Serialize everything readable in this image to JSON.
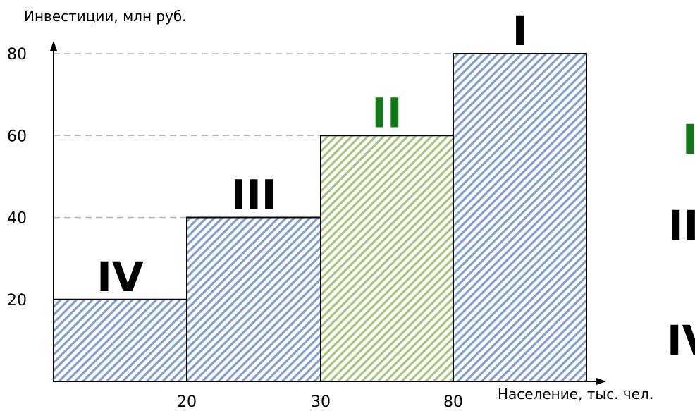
{
  "chart_data": {
    "type": "bar",
    "ylabel": "Инвестиции, млн руб.",
    "xlabel": "Население, тыс. чел.",
    "y_ticks": [
      "20",
      "40",
      "60",
      "80"
    ],
    "y_tick_values": [
      20,
      40,
      60,
      80
    ],
    "x_ticks": [
      "20",
      "30",
      "80"
    ],
    "ylim": [
      0,
      80
    ],
    "grid": "dashed horizontal lines at y ticks",
    "categories": [
      "IV",
      "III",
      "II",
      "I"
    ],
    "values": [
      20,
      40,
      60,
      80
    ],
    "bar_colors": [
      "#7f9ed0",
      "#7f9ed0",
      "#a6c47a",
      "#7f9ed0"
    ],
    "label_colors": [
      "#000000",
      "#000000",
      "#0f7a16",
      "#000000"
    ],
    "side_labels": [
      "I",
      "II",
      "IV"
    ],
    "side_label_colors": [
      "#0f7a16",
      "#000000",
      "#000000"
    ]
  },
  "colors": {
    "hatch_blue": "#7f9ed0",
    "hatch_green": "#a6c47a",
    "accent_green": "#0f7a16",
    "grid": "#b5b5b5"
  }
}
